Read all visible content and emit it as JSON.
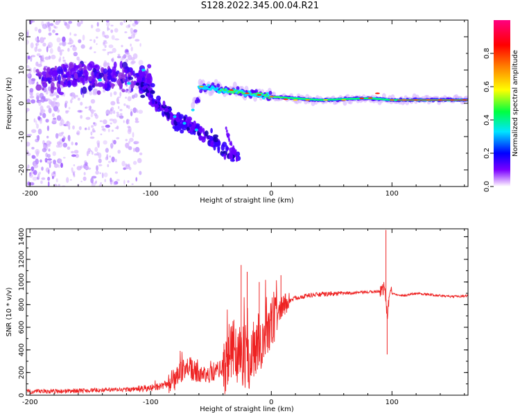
{
  "title": "S128.2022.345.00.04.R21",
  "chart_data": [
    {
      "type": "heatmap",
      "xlabel": "Height of straight line (km)",
      "ylabel": "Frequency (Hz)",
      "xlim": [
        -203,
        163
      ],
      "ylim": [
        -25,
        25
      ],
      "xticks": [
        -200,
        -100,
        0,
        100
      ],
      "yticks": [
        -20,
        -10,
        0,
        10,
        20
      ],
      "xtick_labels": [
        "-200",
        "-100",
        "0",
        "100"
      ],
      "ytick_labels": [
        "-20",
        "-10",
        "0",
        "10",
        "20"
      ],
      "colorbar": {
        "label": "Normalized spectral amplitude",
        "range": [
          0,
          1
        ],
        "ticks": [
          0.0,
          0.2,
          0.4,
          0.6,
          0.8
        ],
        "tick_labels": [
          "0.0",
          "0.2",
          "0.4",
          "0.6",
          "0.8"
        ],
        "colors": [
          "#ffffff",
          "#7b00ff",
          "#0000ff",
          "#00e5ff",
          "#00ff00",
          "#ffff00",
          "#ff8000",
          "#ff0000",
          "#ff0080"
        ]
      },
      "features": {
        "noise_region_x": [
          -203,
          -120
        ],
        "descending_branch": [
          [
            -110,
            8
          ],
          [
            -95,
            0
          ],
          [
            -80,
            -5
          ],
          [
            -65,
            -7
          ],
          [
            -50,
            -11
          ],
          [
            -28,
            -17
          ]
        ],
        "ridge": [
          [
            -60,
            5
          ],
          [
            -40,
            4
          ],
          [
            -20,
            3
          ],
          [
            0,
            2
          ],
          [
            40,
            1
          ],
          [
            80,
            1.5
          ],
          [
            100,
            1
          ],
          [
            163,
            1
          ]
        ]
      }
    },
    {
      "type": "line",
      "xlabel": "Height of straight line (km)",
      "ylabel": "SNR (10 * v/v)",
      "xlim": [
        -203,
        163
      ],
      "ylim": [
        0,
        1470
      ],
      "xticks": [
        -200,
        -100,
        0,
        100
      ],
      "yticks": [
        0,
        200,
        400,
        600,
        800,
        1000,
        1200,
        1400
      ],
      "xtick_labels": [
        "-200",
        "-100",
        "0",
        "100"
      ],
      "ytick_labels": [
        "0",
        "200",
        "400",
        "600",
        "800",
        "1000",
        "1200",
        "1400"
      ],
      "series": [
        {
          "color": "#ee2222",
          "x": [
            -203,
            -180,
            -160,
            -140,
            -120,
            -110,
            -100,
            -90,
            -80,
            -75,
            -70,
            -60,
            -50,
            -40,
            -35,
            -30,
            -25,
            -20,
            -15,
            -10,
            -5,
            0,
            5,
            10,
            20,
            30,
            40,
            60,
            80,
            90,
            94,
            96,
            98,
            100,
            110,
            120,
            130,
            140,
            150,
            163
          ],
          "y": [
            30,
            35,
            40,
            45,
            50,
            55,
            60,
            80,
            130,
            200,
            250,
            180,
            180,
            250,
            350,
            400,
            350,
            300,
            350,
            450,
            520,
            620,
            700,
            800,
            860,
            880,
            890,
            900,
            910,
            920,
            950,
            700,
            900,
            900,
            880,
            900,
            890,
            880,
            870,
            880
          ]
        }
      ],
      "spikes": [
        [
          -25,
          1150
        ],
        [
          -20,
          1090
        ],
        [
          -10,
          1000
        ],
        [
          8,
          1060
        ],
        [
          95,
          1460
        ],
        [
          96,
          360
        ]
      ]
    }
  ]
}
